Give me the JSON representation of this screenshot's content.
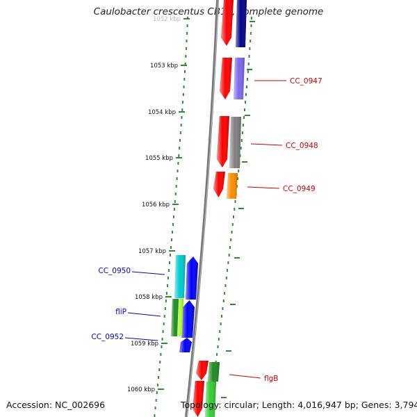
{
  "title": "Caulobacter crescentus CB15, complete genome",
  "accession": "Accession: NC_002696",
  "topology": "Topology: circular; Length: 4,016,947 bp; Genes: 3,794",
  "scale": {
    "ticks": [
      {
        "label": "1052 kbp"
      },
      {
        "label": "1053 kbp"
      },
      {
        "label": "1054 kbp"
      },
      {
        "label": "1055 kbp"
      },
      {
        "label": "1056 kbp"
      },
      {
        "label": "1057 kbp"
      },
      {
        "label": "1058 kbp"
      },
      {
        "label": "1059 kbp"
      },
      {
        "label": "1060 kbp"
      }
    ]
  },
  "forward_strand": {
    "color": "#ff0000",
    "genes": [
      {
        "name": "CC_0946",
        "label": "",
        "color": "#ff0000"
      },
      {
        "name": "CC_0947",
        "label": "CC_0947",
        "color": "#ff0000"
      },
      {
        "name": "CC_0948",
        "label": "CC_0948",
        "color": "#ff0000"
      },
      {
        "name": "CC_0949",
        "label": "CC_0949",
        "color": "#ff0000"
      },
      {
        "name": "flgB-a",
        "label": "flgB",
        "color": "#ff0000"
      },
      {
        "name": "flgB-b",
        "label": "",
        "color": "#ff0000"
      }
    ]
  },
  "cog_track": {
    "genes": [
      {
        "name": "CC_0946-cog",
        "color": "#00008b"
      },
      {
        "name": "CC_0947-cog",
        "color": "#7b68ee"
      },
      {
        "name": "CC_0948-cog",
        "color": "#808080"
      },
      {
        "name": "CC_0949-cog",
        "color": "#ff8c00"
      },
      {
        "name": "flgB-cog-a",
        "color": "#228b22"
      },
      {
        "name": "flgB-cog-b",
        "color": "#32cd32"
      }
    ]
  },
  "reverse_strand": {
    "color": "#0000ff",
    "genes": [
      {
        "name": "CC_0950",
        "label": "CC_0950",
        "color": "#0000ff",
        "cog_color": "#00ced1"
      },
      {
        "name": "fliP",
        "label": "fliP",
        "color": "#0000ff",
        "cog_color": "#228b22",
        "cog_color_2": "#adff2f"
      },
      {
        "name": "CC_0952",
        "label": "CC_0952",
        "color": "#0000ff",
        "cog_color": ""
      }
    ]
  },
  "colors": {
    "backbone": "#777777",
    "dots": "#2e8b2e",
    "forward_label": "#cc0000",
    "reverse_label": "#0000cc"
  }
}
